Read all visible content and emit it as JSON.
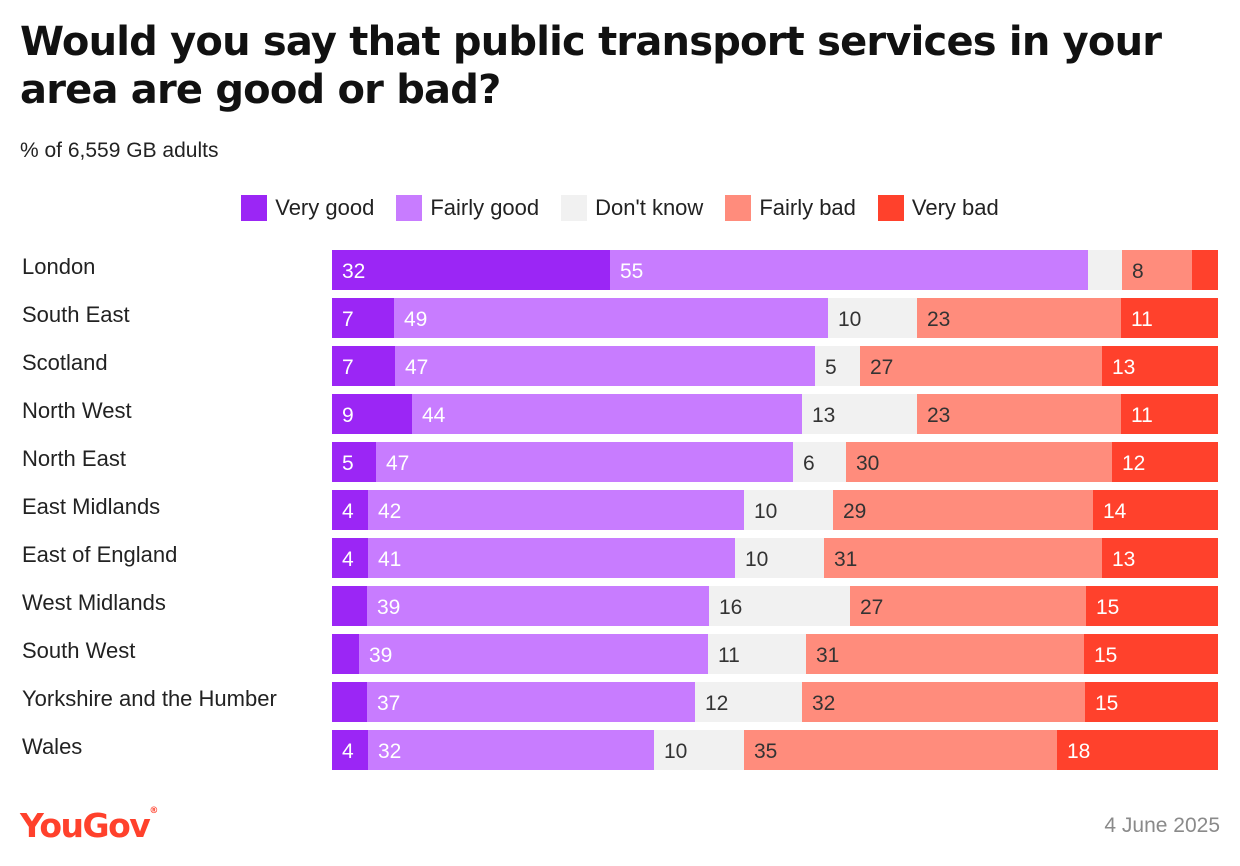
{
  "title": "Would you say that public transport services in your area are good or bad?",
  "subtitle": "% of 6,559 GB adults",
  "footer": {
    "logo_text": "YouGov",
    "logo_mark": "®",
    "date": "4 June 2025"
  },
  "colors": {
    "very_good": "#9b26f5",
    "fairly_good": "#c87cff",
    "dont_know": "#f1f1f1",
    "fairly_bad": "#ff8c7c",
    "very_bad": "#ff412c",
    "label_light": "#ffffff",
    "label_dark": "#333333",
    "logo": "#ff412c"
  },
  "chart_data": {
    "type": "bar",
    "orientation": "horizontal",
    "stacked": true,
    "normalized_to": 100,
    "legend_position": "top",
    "grid": false,
    "categories": [
      "London",
      "South East",
      "Scotland",
      "North West",
      "North East",
      "East Midlands",
      "East of England",
      "West Midlands",
      "South West",
      "Yorkshire and the Humber",
      "Wales"
    ],
    "series": [
      {
        "name": "Very good",
        "color": "#9b26f5",
        "values": [
          32,
          7,
          7,
          9,
          5,
          4,
          4,
          4,
          3,
          4,
          4
        ]
      },
      {
        "name": "Fairly good",
        "color": "#c87cff",
        "values": [
          55,
          49,
          47,
          44,
          47,
          42,
          41,
          39,
          39,
          37,
          32
        ]
      },
      {
        "name": "Don't know",
        "color": "#f1f1f1",
        "values": [
          4,
          10,
          5,
          13,
          6,
          10,
          10,
          16,
          11,
          12,
          10
        ]
      },
      {
        "name": "Fairly bad",
        "color": "#ff8c7c",
        "values": [
          8,
          23,
          27,
          23,
          30,
          29,
          31,
          27,
          31,
          32,
          35
        ]
      },
      {
        "name": "Very bad",
        "color": "#ff412c",
        "values": [
          3,
          11,
          13,
          11,
          12,
          14,
          13,
          15,
          15,
          15,
          18
        ]
      }
    ],
    "labels": [
      [
        "32",
        "55",
        "",
        "8",
        ""
      ],
      [
        "7",
        "49",
        "10",
        "23",
        "11"
      ],
      [
        "7",
        "47",
        "5",
        "27",
        "13"
      ],
      [
        "9",
        "44",
        "13",
        "23",
        "11"
      ],
      [
        "5",
        "47",
        "6",
        "30",
        "12"
      ],
      [
        "4",
        "42",
        "10",
        "29",
        "14"
      ],
      [
        "4",
        "41",
        "10",
        "31",
        "13"
      ],
      [
        "",
        "39",
        "16",
        "27",
        "15"
      ],
      [
        "",
        "39",
        "11",
        "31",
        "15"
      ],
      [
        "",
        "37",
        "12",
        "32",
        "15"
      ],
      [
        "4",
        "32",
        "10",
        "35",
        "18"
      ]
    ]
  }
}
